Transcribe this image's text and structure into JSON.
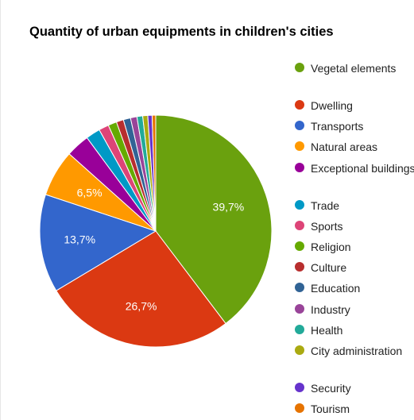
{
  "chart_data": {
    "type": "pie",
    "title": "Quantity of urban equipments in children's cities",
    "legend_position": "right",
    "slices": [
      {
        "label": "Vegetal elements",
        "value": 39.7,
        "color": "#6aa10e",
        "data_label": "39,7%"
      },
      {
        "label": "Dwelling",
        "value": 26.7,
        "color": "#db3912",
        "data_label": "26,7%"
      },
      {
        "label": "Transports",
        "value": 13.7,
        "color": "#3366cc",
        "data_label": "13,7%"
      },
      {
        "label": "Natural areas",
        "value": 6.5,
        "color": "#ff9900",
        "data_label": "6,5%"
      },
      {
        "label": "Exceptional buildings",
        "value": 3.3,
        "color": "#990099",
        "data_label": ""
      },
      {
        "label": "Trade",
        "value": 2.0,
        "color": "#0099c6",
        "data_label": ""
      },
      {
        "label": "Sports",
        "value": 1.4,
        "color": "#dd4477",
        "data_label": ""
      },
      {
        "label": "Religion",
        "value": 1.2,
        "color": "#66aa00",
        "data_label": ""
      },
      {
        "label": "Culture",
        "value": 1.0,
        "color": "#b82e2e",
        "data_label": ""
      },
      {
        "label": "Education",
        "value": 1.0,
        "color": "#316395",
        "data_label": ""
      },
      {
        "label": "Industry",
        "value": 0.9,
        "color": "#994499",
        "data_label": ""
      },
      {
        "label": "Health",
        "value": 0.8,
        "color": "#22aa99",
        "data_label": ""
      },
      {
        "label": "City administration",
        "value": 0.7,
        "color": "#aaaa11",
        "data_label": ""
      },
      {
        "label": "Security",
        "value": 0.6,
        "color": "#6633cc",
        "data_label": ""
      },
      {
        "label": "Tourism",
        "value": 0.5,
        "color": "#e67300",
        "data_label": ""
      }
    ]
  }
}
